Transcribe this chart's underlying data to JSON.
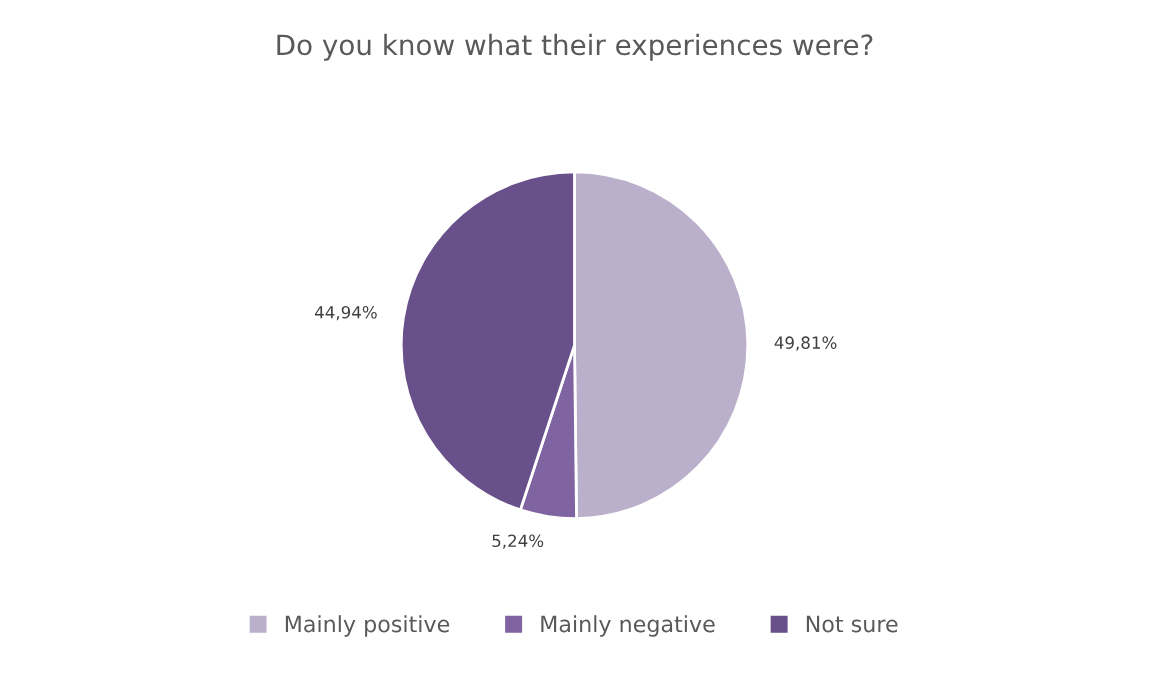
{
  "chart_data": {
    "type": "pie",
    "title": "Do you know what their experiences were?",
    "categories": [
      "Mainly positive",
      "Mainly negative",
      "Not sure"
    ],
    "values": [
      49.81,
      5.24,
      44.94
    ],
    "value_labels": [
      "49,81%",
      "5,24%",
      "44,94%"
    ],
    "colors": [
      "#bab0cb",
      "#8064a2",
      "#68508a"
    ],
    "legend": "bottom"
  }
}
